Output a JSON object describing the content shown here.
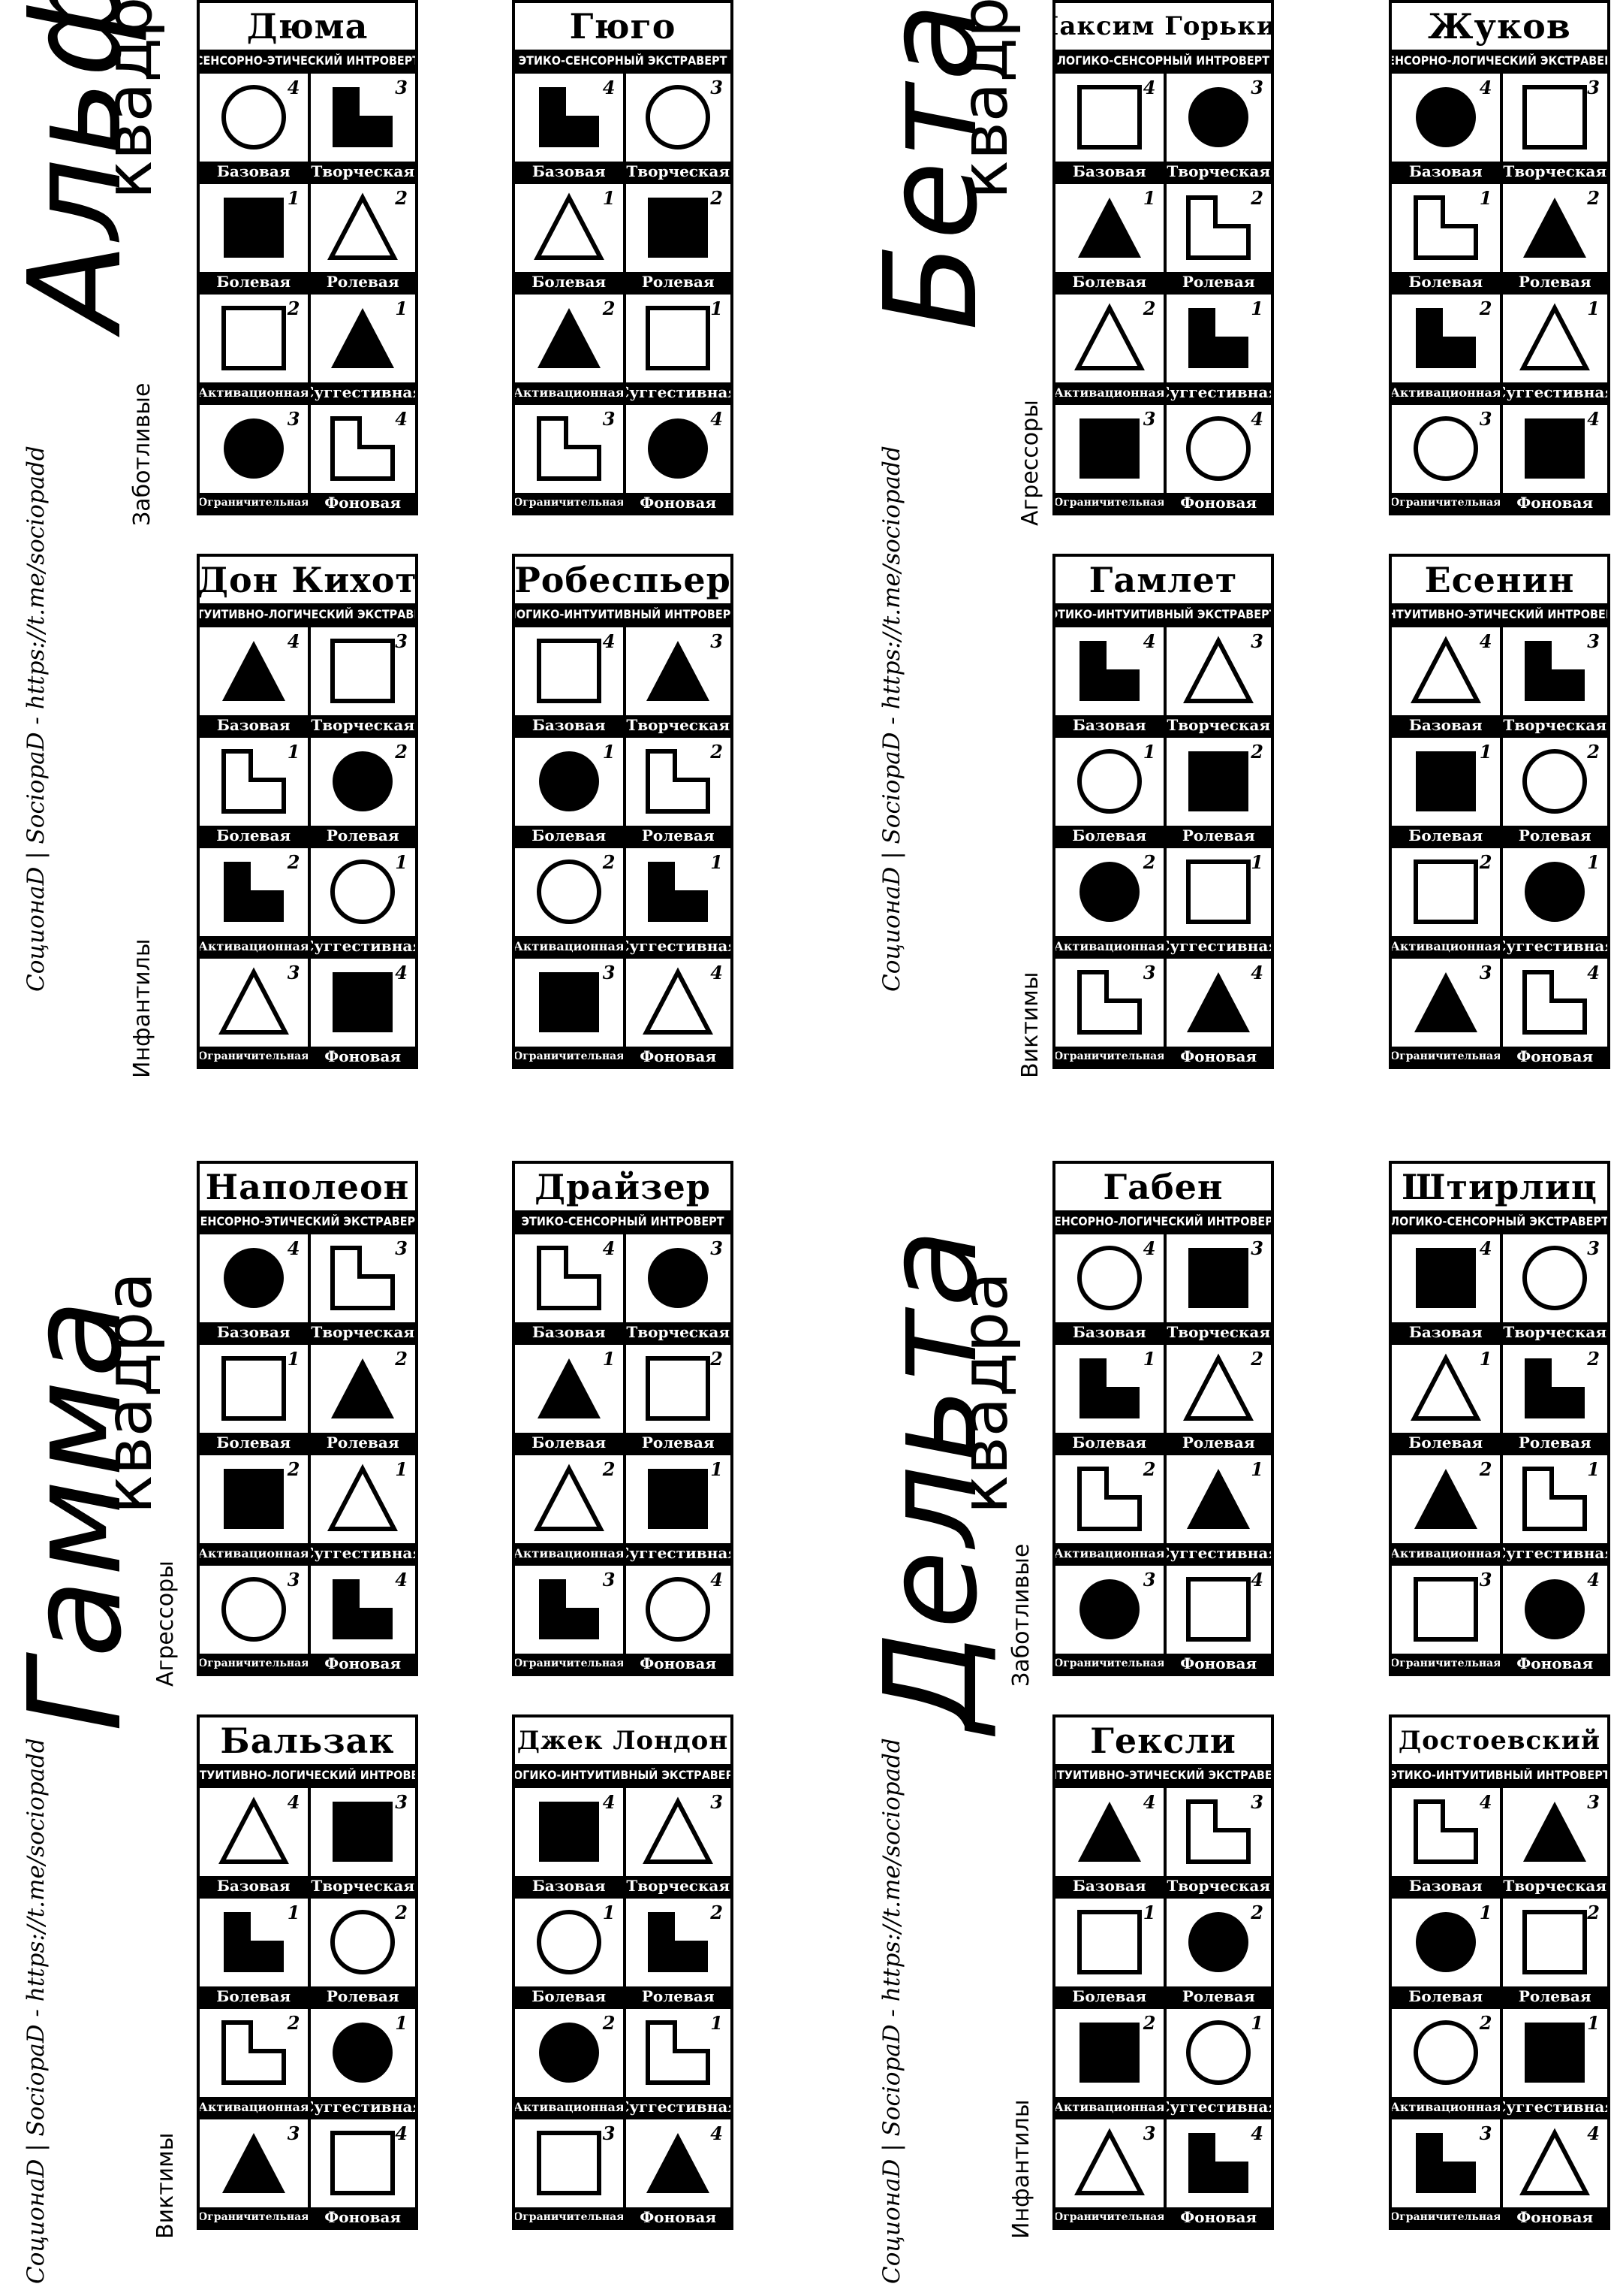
{
  "labels": {
    "base": "Базовая",
    "creative": "Творческая",
    "vulnerable": "Болевая",
    "role": "Ролевая",
    "activation": "Активационная",
    "suggestive": "Суггестивная",
    "restrictive": "Ограничительная",
    "background": "Фоновая",
    "kvadra": "квадра"
  },
  "watermark": "СоционаD | SocioраD - https://t.me/sociopadd",
  "quadras": [
    {
      "name": "Альфа",
      "groups": [
        "Заботливые",
        "Инфантилы"
      ],
      "cards": [
        {
          "title": "Дюма",
          "subtitle": "СЕНСОРНО-ЭТИЧЕСКИЙ ИНТРОВЕРТ",
          "cells": [
            [
              "circle-outline",
              "4"
            ],
            [
              "step-filled",
              "3"
            ],
            [
              "square-filled",
              "1"
            ],
            [
              "triangle-outline",
              "2"
            ],
            [
              "square-outline",
              "2"
            ],
            [
              "triangle-filled",
              "1"
            ],
            [
              "circle-filled",
              "3"
            ],
            [
              "step-outline",
              "4"
            ]
          ]
        },
        {
          "title": "Гюго",
          "subtitle": "ЭТИКО-СЕНСОРНЫЙ ЭКСТРАВЕРТ",
          "cells": [
            [
              "step-filled",
              "4"
            ],
            [
              "circle-outline",
              "3"
            ],
            [
              "triangle-outline",
              "1"
            ],
            [
              "square-filled",
              "2"
            ],
            [
              "triangle-filled",
              "2"
            ],
            [
              "square-outline",
              "1"
            ],
            [
              "step-outline",
              "3"
            ],
            [
              "circle-filled",
              "4"
            ]
          ]
        },
        {
          "title": "Дон Кихот",
          "subtitle": "ИНТУИТИВНО-ЛОГИЧЕСКИЙ ЭКСТРАВЕРТ",
          "cells": [
            [
              "triangle-filled",
              "4"
            ],
            [
              "square-outline",
              "3"
            ],
            [
              "step-outline",
              "1"
            ],
            [
              "circle-filled",
              "2"
            ],
            [
              "step-filled",
              "2"
            ],
            [
              "circle-outline",
              "1"
            ],
            [
              "triangle-outline",
              "3"
            ],
            [
              "square-filled",
              "4"
            ]
          ]
        },
        {
          "title": "Робеспьер",
          "subtitle": "ЛОГИКО-ИНТУИТИВНЫЙ ИНТРОВЕРТ",
          "cells": [
            [
              "square-outline",
              "4"
            ],
            [
              "triangle-filled",
              "3"
            ],
            [
              "circle-filled",
              "1"
            ],
            [
              "step-outline",
              "2"
            ],
            [
              "circle-outline",
              "2"
            ],
            [
              "step-filled",
              "1"
            ],
            [
              "square-filled",
              "3"
            ],
            [
              "triangle-outline",
              "4"
            ]
          ]
        }
      ]
    },
    {
      "name": "Бета",
      "groups": [
        "Агрессоры",
        "Виктимы"
      ],
      "cards": [
        {
          "title": "Максим Горький",
          "subtitle": "ЛОГИКО-СЕНСОРНЫЙ ИНТРОВЕРТ",
          "cells": [
            [
              "square-outline",
              "4"
            ],
            [
              "circle-filled",
              "3"
            ],
            [
              "triangle-filled",
              "1"
            ],
            [
              "step-outline",
              "2"
            ],
            [
              "triangle-outline",
              "2"
            ],
            [
              "step-filled",
              "1"
            ],
            [
              "square-filled",
              "3"
            ],
            [
              "circle-outline",
              "4"
            ]
          ]
        },
        {
          "title": "Жуков",
          "subtitle": "СЕНСОРНО-ЛОГИЧЕСКИЙ ЭКСТРАВЕРТ",
          "cells": [
            [
              "circle-filled",
              "4"
            ],
            [
              "square-outline",
              "3"
            ],
            [
              "step-outline",
              "1"
            ],
            [
              "triangle-filled",
              "2"
            ],
            [
              "step-filled",
              "2"
            ],
            [
              "triangle-outline",
              "1"
            ],
            [
              "circle-outline",
              "3"
            ],
            [
              "square-filled",
              "4"
            ]
          ]
        },
        {
          "title": "Гамлет",
          "subtitle": "ЭТИКО-ИНТУИТИВНЫЙ ЭКСТРАВЕРТ",
          "cells": [
            [
              "step-filled",
              "4"
            ],
            [
              "triangle-outline",
              "3"
            ],
            [
              "circle-outline",
              "1"
            ],
            [
              "square-filled",
              "2"
            ],
            [
              "circle-filled",
              "2"
            ],
            [
              "square-outline",
              "1"
            ],
            [
              "step-outline",
              "3"
            ],
            [
              "triangle-filled",
              "4"
            ]
          ]
        },
        {
          "title": "Есенин",
          "subtitle": "ИНТУИТИВНО-ЭТИЧЕСКИЙ ИНТРОВЕРТ",
          "cells": [
            [
              "triangle-outline",
              "4"
            ],
            [
              "step-filled",
              "3"
            ],
            [
              "square-filled",
              "1"
            ],
            [
              "circle-outline",
              "2"
            ],
            [
              "square-outline",
              "2"
            ],
            [
              "circle-filled",
              "1"
            ],
            [
              "triangle-filled",
              "3"
            ],
            [
              "step-outline",
              "4"
            ]
          ]
        }
      ]
    },
    {
      "name": "Гамма",
      "groups": [
        "Агрессоры",
        "Виктимы"
      ],
      "cards": [
        {
          "title": "Наполеон",
          "subtitle": "СЕНСОРНО-ЭТИЧЕСКИЙ ЭКСТРАВЕРТ",
          "cells": [
            [
              "circle-filled",
              "4"
            ],
            [
              "step-outline",
              "3"
            ],
            [
              "square-outline",
              "1"
            ],
            [
              "triangle-filled",
              "2"
            ],
            [
              "square-filled",
              "2"
            ],
            [
              "triangle-outline",
              "1"
            ],
            [
              "circle-outline",
              "3"
            ],
            [
              "step-filled",
              "4"
            ]
          ]
        },
        {
          "title": "Драйзер",
          "subtitle": "ЭТИКО-СЕНСОРНЫЙ ИНТРОВЕРТ",
          "cells": [
            [
              "step-outline",
              "4"
            ],
            [
              "circle-filled",
              "3"
            ],
            [
              "triangle-filled",
              "1"
            ],
            [
              "square-outline",
              "2"
            ],
            [
              "triangle-outline",
              "2"
            ],
            [
              "square-filled",
              "1"
            ],
            [
              "step-filled",
              "3"
            ],
            [
              "circle-outline",
              "4"
            ]
          ]
        },
        {
          "title": "Бальзак",
          "subtitle": "ИНТУИТИВНО-ЛОГИЧЕСКИЙ ИНТРОВЕРТ",
          "cells": [
            [
              "triangle-outline",
              "4"
            ],
            [
              "square-filled",
              "3"
            ],
            [
              "step-filled",
              "1"
            ],
            [
              "circle-outline",
              "2"
            ],
            [
              "step-outline",
              "2"
            ],
            [
              "circle-filled",
              "1"
            ],
            [
              "triangle-filled",
              "3"
            ],
            [
              "square-outline",
              "4"
            ]
          ]
        },
        {
          "title": "Джек Лондон",
          "subtitle": "ЛОГИКО-ИНТУИТИВНЫЙ ЭКСТРАВЕРТ",
          "cells": [
            [
              "square-filled",
              "4"
            ],
            [
              "triangle-outline",
              "3"
            ],
            [
              "circle-outline",
              "1"
            ],
            [
              "step-filled",
              "2"
            ],
            [
              "circle-filled",
              "2"
            ],
            [
              "step-outline",
              "1"
            ],
            [
              "square-outline",
              "3"
            ],
            [
              "triangle-filled",
              "4"
            ]
          ]
        }
      ]
    },
    {
      "name": "Дельта",
      "groups": [
        "Заботливые",
        "Инфантилы"
      ],
      "cards": [
        {
          "title": "Габен",
          "subtitle": "СЕНСОРНО-ЛОГИЧЕСКИЙ ИНТРОВЕРТ",
          "cells": [
            [
              "circle-outline",
              "4"
            ],
            [
              "square-filled",
              "3"
            ],
            [
              "step-filled",
              "1"
            ],
            [
              "triangle-outline",
              "2"
            ],
            [
              "step-outline",
              "2"
            ],
            [
              "triangle-filled",
              "1"
            ],
            [
              "circle-filled",
              "3"
            ],
            [
              "square-outline",
              "4"
            ]
          ]
        },
        {
          "title": "Штирлиц",
          "subtitle": "ЛОГИКО-СЕНСОРНЫЙ ЭКСТРАВЕРТ",
          "cells": [
            [
              "square-filled",
              "4"
            ],
            [
              "circle-outline",
              "3"
            ],
            [
              "triangle-outline",
              "1"
            ],
            [
              "step-filled",
              "2"
            ],
            [
              "triangle-filled",
              "2"
            ],
            [
              "step-outline",
              "1"
            ],
            [
              "square-outline",
              "3"
            ],
            [
              "circle-filled",
              "4"
            ]
          ]
        },
        {
          "title": "Гексли",
          "subtitle": "ИНТУИТИВНО-ЭТИЧЕСКИЙ ЭКСТРАВЕРТ",
          "cells": [
            [
              "triangle-filled",
              "4"
            ],
            [
              "step-outline",
              "3"
            ],
            [
              "square-outline",
              "1"
            ],
            [
              "circle-filled",
              "2"
            ],
            [
              "square-filled",
              "2"
            ],
            [
              "circle-outline",
              "1"
            ],
            [
              "triangle-outline",
              "3"
            ],
            [
              "step-filled",
              "4"
            ]
          ]
        },
        {
          "title": "Достоевский",
          "subtitle": "ЭТИКО-ИНТУИТИВНЫЙ ИНТРОВЕРТ",
          "cells": [
            [
              "step-outline",
              "4"
            ],
            [
              "triangle-filled",
              "3"
            ],
            [
              "circle-filled",
              "1"
            ],
            [
              "square-outline",
              "2"
            ],
            [
              "circle-outline",
              "2"
            ],
            [
              "square-filled",
              "1"
            ],
            [
              "step-filled",
              "3"
            ],
            [
              "triangle-outline",
              "4"
            ]
          ]
        }
      ]
    }
  ]
}
